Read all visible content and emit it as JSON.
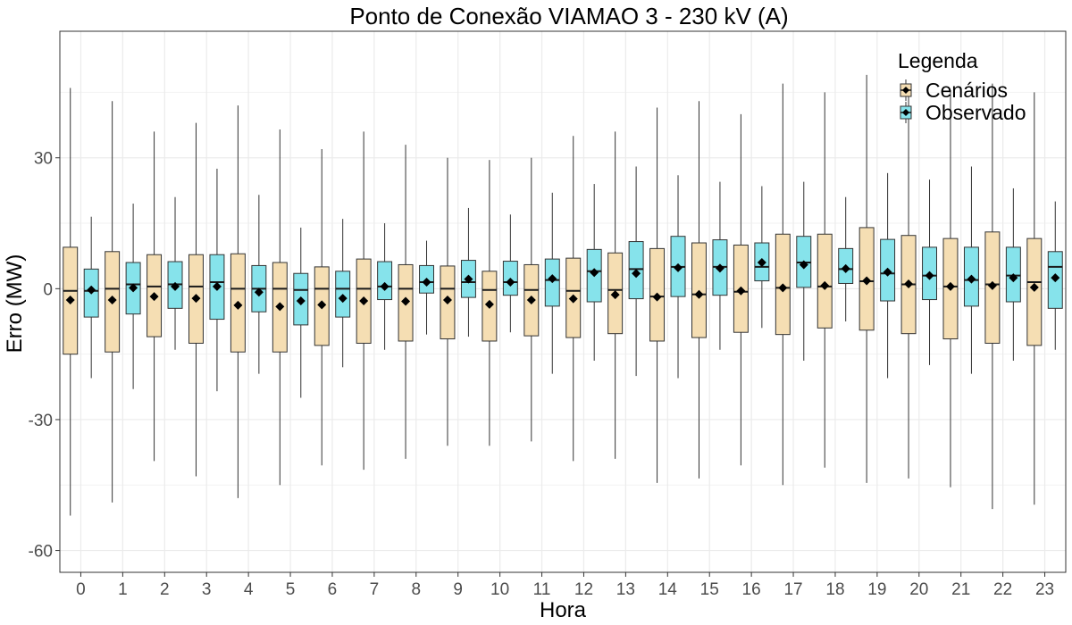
{
  "chart_data": {
    "type": "boxplot",
    "title": "Ponto de Conexão VIAMAO 3 - 230 kV (A)",
    "xlabel": "Hora",
    "ylabel": "Erro (MW)",
    "ylim": [
      -65,
      59
    ],
    "yticks": [
      -60,
      -30,
      0,
      30
    ],
    "grid": true,
    "legend": {
      "title": "Legenda",
      "placement": "top-right"
    },
    "categories": [
      "0",
      "1",
      "2",
      "3",
      "4",
      "5",
      "6",
      "7",
      "8",
      "9",
      "10",
      "11",
      "12",
      "13",
      "14",
      "15",
      "16",
      "17",
      "18",
      "19",
      "20",
      "21",
      "22",
      "23"
    ],
    "series": [
      {
        "name": "Cenários",
        "color": "#f5deb3",
        "boxes": [
          {
            "min": -52,
            "q1": -15,
            "median": -0.5,
            "q3": 9.5,
            "max": 46,
            "mean": -2.6
          },
          {
            "min": -49,
            "q1": -14.5,
            "median": 0,
            "q3": 8.5,
            "max": 43,
            "mean": -2.6
          },
          {
            "min": -39.5,
            "q1": -11,
            "median": 0.5,
            "q3": 7.8,
            "max": 36,
            "mean": -1.8
          },
          {
            "min": -43,
            "q1": -12.5,
            "median": 0.5,
            "q3": 7.8,
            "max": 38,
            "mean": -2.2
          },
          {
            "min": -48,
            "q1": -14.5,
            "median": 0,
            "q3": 8,
            "max": 42,
            "mean": -3.8
          },
          {
            "min": -45,
            "q1": -14.5,
            "median": 0,
            "q3": 6,
            "max": 36.5,
            "mean": -4.1
          },
          {
            "min": -40.5,
            "q1": -13,
            "median": 0,
            "q3": 5,
            "max": 32,
            "mean": -3.7
          },
          {
            "min": -41.5,
            "q1": -12.5,
            "median": 0,
            "q3": 6.8,
            "max": 36,
            "mean": -2.8
          },
          {
            "min": -39,
            "q1": -12,
            "median": 0,
            "q3": 5.5,
            "max": 33,
            "mean": -2.9
          },
          {
            "min": -36,
            "q1": -11.5,
            "median": 0,
            "q3": 5.2,
            "max": 30,
            "mean": -2.6
          },
          {
            "min": -36,
            "q1": -12,
            "median": -0.3,
            "q3": 4,
            "max": 29.5,
            "mean": -3.6
          },
          {
            "min": -35,
            "q1": -10.8,
            "median": -0.3,
            "q3": 5.5,
            "max": 30,
            "mean": -2.6
          },
          {
            "min": -39.5,
            "q1": -11.2,
            "median": -0.5,
            "q3": 7,
            "max": 35,
            "mean": -2.3
          },
          {
            "min": -39,
            "q1": -10.3,
            "median": -0.3,
            "q3": 8.2,
            "max": 36,
            "mean": -1.4
          },
          {
            "min": -44.5,
            "q1": -12,
            "median": -1.8,
            "q3": 9.2,
            "max": 41.5,
            "mean": -1.9
          },
          {
            "min": -43.5,
            "q1": -11.2,
            "median": -1.3,
            "q3": 10.5,
            "max": 43,
            "mean": -1.3
          },
          {
            "min": -40.5,
            "q1": -10,
            "median": -0.7,
            "q3": 10,
            "max": 40,
            "mean": -0.5
          },
          {
            "min": -45,
            "q1": -10.5,
            "median": 0.2,
            "q3": 12.5,
            "max": 47,
            "mean": 0.2
          },
          {
            "min": -41,
            "q1": -9,
            "median": 0.5,
            "q3": 12.5,
            "max": 45,
            "mean": 0.7
          },
          {
            "min": -44.5,
            "q1": -9.5,
            "median": 1.7,
            "q3": 14,
            "max": 49,
            "mean": 1.8
          },
          {
            "min": -43.5,
            "q1": -10.3,
            "median": 1,
            "q3": 12.2,
            "max": 46.5,
            "mean": 1.1
          },
          {
            "min": -45.5,
            "q1": -11.5,
            "median": 0.5,
            "q3": 11.5,
            "max": 45.5,
            "mean": 0.5
          },
          {
            "min": -50.5,
            "q1": -12.5,
            "median": 1,
            "q3": 13,
            "max": 47,
            "mean": 0.7
          },
          {
            "min": -49.5,
            "q1": -13,
            "median": 1.5,
            "q3": 11.5,
            "max": 45,
            "mean": 0.3
          }
        ]
      },
      {
        "name": "Observado",
        "color": "#86e3eb",
        "boxes": [
          {
            "min": -20.5,
            "q1": -6.5,
            "median": -0.5,
            "q3": 4.5,
            "max": 16.5,
            "mean": -0.3
          },
          {
            "min": -23,
            "q1": -5.8,
            "median": 1,
            "q3": 6,
            "max": 19.5,
            "mean": 0.2
          },
          {
            "min": -14,
            "q1": -4.5,
            "median": 1,
            "q3": 6.2,
            "max": 21,
            "mean": 0.5
          },
          {
            "min": -23.5,
            "q1": -7,
            "median": 1.5,
            "q3": 7.8,
            "max": 27.5,
            "mean": 0.5
          },
          {
            "min": -19.5,
            "q1": -5.3,
            "median": 0,
            "q3": 5.3,
            "max": 21.5,
            "mean": -0.8
          },
          {
            "min": -25,
            "q1": -8.3,
            "median": -0.3,
            "q3": 3.5,
            "max": 14,
            "mean": -2.8
          },
          {
            "min": -18,
            "q1": -6.5,
            "median": 0,
            "q3": 4,
            "max": 16,
            "mean": -2.2
          },
          {
            "min": -14,
            "q1": -2.5,
            "median": 0.5,
            "q3": 6.2,
            "max": 15,
            "mean": 0.5
          },
          {
            "min": -10.5,
            "q1": -1,
            "median": 1.5,
            "q3": 5.3,
            "max": 11,
            "mean": 1.5
          },
          {
            "min": -11,
            "q1": -2,
            "median": 1.5,
            "q3": 6.5,
            "max": 18.5,
            "mean": 2.2
          },
          {
            "min": -10,
            "q1": -1.5,
            "median": 1.5,
            "q3": 6.3,
            "max": 17,
            "mean": 1.5
          },
          {
            "min": -19.5,
            "q1": -4,
            "median": 2,
            "q3": 6.8,
            "max": 22,
            "mean": 2.3
          },
          {
            "min": -16.5,
            "q1": -3,
            "median": 4,
            "q3": 9,
            "max": 24,
            "mean": 3.7
          },
          {
            "min": -20,
            "q1": -2.3,
            "median": 4.5,
            "q3": 10.8,
            "max": 28,
            "mean": 3.5
          },
          {
            "min": -20.5,
            "q1": -1.8,
            "median": 5,
            "q3": 12,
            "max": 26,
            "mean": 4.8
          },
          {
            "min": -14,
            "q1": -1.5,
            "median": 5,
            "q3": 11.2,
            "max": 24.5,
            "mean": 4.7
          },
          {
            "min": -9,
            "q1": 1.8,
            "median": 5,
            "q3": 10.5,
            "max": 23.5,
            "mean": 6
          },
          {
            "min": -16.5,
            "q1": 0.3,
            "median": 6,
            "q3": 12,
            "max": 24.5,
            "mean": 5.5
          },
          {
            "min": -7.5,
            "q1": 1.2,
            "median": 4.5,
            "q3": 9.2,
            "max": 21,
            "mean": 4.6
          },
          {
            "min": -20.5,
            "q1": -2.8,
            "median": 3.5,
            "q3": 11.3,
            "max": 26.5,
            "mean": 3.8
          },
          {
            "min": -17.5,
            "q1": -2.5,
            "median": 3,
            "q3": 9.5,
            "max": 25,
            "mean": 3
          },
          {
            "min": -19.5,
            "q1": -4,
            "median": 2,
            "q3": 9.5,
            "max": 28,
            "mean": 2.2
          },
          {
            "min": -16.5,
            "q1": -3,
            "median": 3,
            "q3": 9.5,
            "max": 23,
            "mean": 2.5
          },
          {
            "min": -14,
            "q1": -4.5,
            "median": 5,
            "q3": 8.5,
            "max": 20,
            "mean": 2.5
          }
        ]
      }
    ]
  }
}
